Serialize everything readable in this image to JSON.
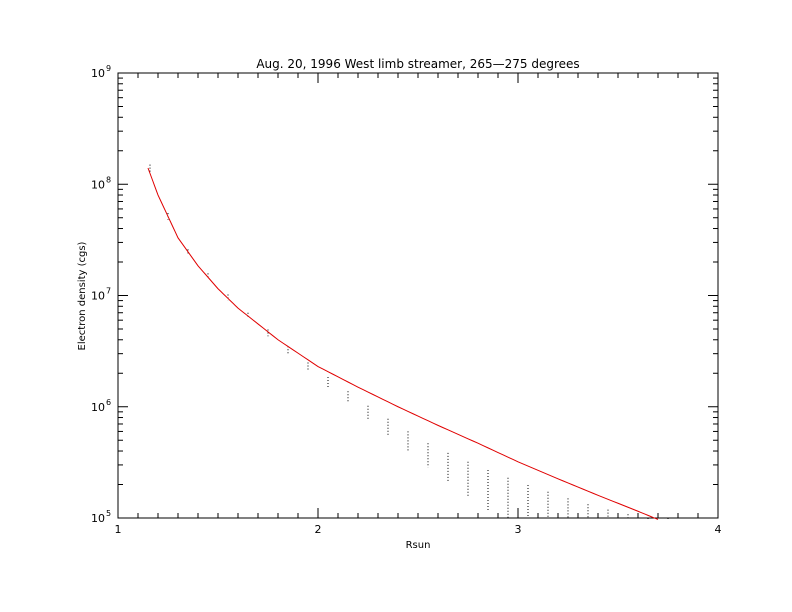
{
  "chart_data": {
    "type": "line",
    "title": "Aug. 20, 1996 West limb streamer, 265—275 degrees",
    "xlabel": "Rsun",
    "ylabel": "Electron density (cgs)",
    "xlim": [
      1,
      4
    ],
    "ylim": [
      100000,
      1000000000
    ],
    "yscale": "log",
    "grid": false,
    "x_ticks": [
      {
        "value": 1,
        "label": "1"
      },
      {
        "value": 2,
        "label": "2"
      },
      {
        "value": 3,
        "label": "3"
      },
      {
        "value": 4,
        "label": "4"
      }
    ],
    "y_ticks": [
      {
        "value": 100000,
        "base": "10",
        "exp": "5"
      },
      {
        "value": 1000000,
        "base": "10",
        "exp": "6"
      },
      {
        "value": 10000000,
        "base": "10",
        "exp": "7"
      },
      {
        "value": 100000000,
        "base": "10",
        "exp": "8"
      },
      {
        "value": 1000000000,
        "base": "10",
        "exp": "9"
      }
    ],
    "series": [
      {
        "style": "solid",
        "color": "#e00000",
        "x": [
          1.15,
          1.2,
          1.3,
          1.4,
          1.5,
          1.6,
          1.8,
          2.0,
          2.2,
          2.4,
          2.6,
          2.8,
          3.0,
          3.2,
          3.4,
          3.6,
          3.7
        ],
        "y": [
          140000000,
          80000000,
          33000000,
          18500000,
          11500000,
          7700000,
          4000000,
          2300000,
          1500000,
          1000000,
          680000,
          470000,
          320000,
          225000,
          160000,
          115000,
          97000
        ]
      }
    ],
    "error_samples": {
      "style": "dotted-vertical",
      "color": "#000000",
      "x": [
        1.16,
        1.25,
        1.35,
        1.45,
        1.55,
        1.65,
        1.75,
        1.85,
        1.95,
        2.05,
        2.15,
        2.25,
        2.35,
        2.45,
        2.55,
        2.65,
        2.75,
        2.85,
        2.95,
        3.05,
        3.15,
        3.25,
        3.35,
        3.45,
        3.55,
        3.65,
        3.75
      ],
      "low": [
        130000000,
        48000000,
        23000000,
        14000000,
        9000000,
        6200000,
        4300000,
        3000000,
        2100000,
        1500000,
        1080000,
        770000,
        550000,
        390000,
        285000,
        210000,
        155000,
        118000,
        100000,
        100000,
        100000,
        100000,
        100000,
        100000,
        100000,
        100000,
        100000
      ],
      "high": [
        150000000,
        55000000,
        26000000,
        15800000,
        10200000,
        7000000,
        4950000,
        3500000,
        2500000,
        1850000,
        1380000,
        1020000,
        780000,
        600000,
        470000,
        385000,
        320000,
        270000,
        230000,
        198000,
        172000,
        150000,
        133000,
        119000,
        108000,
        100000,
        100000
      ]
    }
  }
}
